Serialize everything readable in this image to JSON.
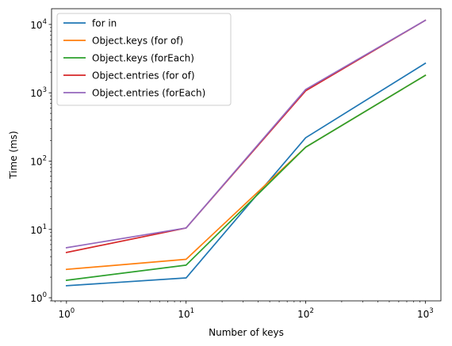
{
  "chart_data": {
    "type": "line",
    "xscale": "log",
    "yscale": "log",
    "xlabel": "Number of keys",
    "ylabel": "Time (ms)",
    "xlim": [
      0.75,
      1350
    ],
    "ylim": [
      0.9,
      17000
    ],
    "x": [
      1,
      10,
      100,
      1000
    ],
    "xticks": [
      {
        "value": 1,
        "base": "10",
        "exp": "0"
      },
      {
        "value": 10,
        "base": "10",
        "exp": "1"
      },
      {
        "value": 100,
        "base": "10",
        "exp": "2"
      },
      {
        "value": 1000,
        "base": "10",
        "exp": "3"
      }
    ],
    "yticks": [
      {
        "value": 1,
        "base": "10",
        "exp": "0"
      },
      {
        "value": 10,
        "base": "10",
        "exp": "1"
      },
      {
        "value": 100,
        "base": "10",
        "exp": "2"
      },
      {
        "value": 1000,
        "base": "10",
        "exp": "3"
      },
      {
        "value": 10000,
        "base": "10",
        "exp": "4"
      }
    ],
    "grid": false,
    "legend_position": "top-left",
    "series": [
      {
        "name": "for in",
        "color": "#1f77b4",
        "values": [
          1.5,
          1.95,
          220,
          2700
        ]
      },
      {
        "name": "Object.keys (for of)",
        "color": "#ff7f0e",
        "values": [
          2.6,
          3.65,
          160,
          1800
        ]
      },
      {
        "name": "Object.keys (forEach)",
        "color": "#2ca02c",
        "values": [
          1.8,
          3.0,
          160,
          1800
        ]
      },
      {
        "name": "Object.entries (for of)",
        "color": "#d62728",
        "values": [
          4.6,
          10.5,
          1070,
          11500
        ]
      },
      {
        "name": "Object.entries (forEach)",
        "color": "#9467bd",
        "values": [
          5.4,
          10.5,
          1120,
          11500
        ]
      }
    ]
  }
}
